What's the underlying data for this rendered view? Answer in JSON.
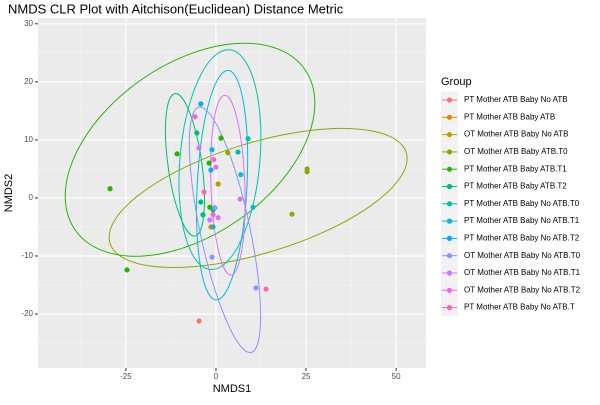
{
  "chart_data": {
    "type": "scatter",
    "title": "NMDS CLR Plot with Aitchison(Euclidean) Distance Metric",
    "x_label": "NMDS1",
    "y_label": "NMDS2",
    "legend_title": "Group",
    "xlim": [
      -49.4,
      58.3
    ],
    "ylim": [
      -29.3,
      31.0
    ],
    "xticks": [
      -25,
      0,
      25,
      50
    ],
    "yticks": [
      -20,
      -10,
      0,
      10,
      20,
      30
    ],
    "grid": true,
    "legend": "right",
    "series": [
      {
        "name": "PT Mother ATB Baby No ATB",
        "color": "#F8766D",
        "x": [
          -4.7
        ],
        "values": [
          -21.2
        ]
      },
      {
        "name": "PT Mother ATB Baby ATB",
        "color": "#E18A00",
        "x": [
          -1.4
        ],
        "values": [
          -5.0
        ]
      },
      {
        "name": "OT Mother ATB Baby No ATB",
        "color": "#BE9C00",
        "x": [
          0.6
        ],
        "values": [
          2.4
        ]
      },
      {
        "name": "OT Mother ATB Baby ATB.T0",
        "color": "#8CAB00",
        "x": [
          25.3,
          25.3,
          21.1,
          3.3
        ],
        "values": [
          5.0,
          4.5,
          -2.8,
          7.8
        ],
        "ellipse": {
          "cx": 11.7,
          "cy": 0,
          "rx": 43,
          "ry": 9.5,
          "angle": -17
        }
      },
      {
        "name": "PT Mother ATB Baby ATB.T1",
        "color": "#24B700",
        "x": [
          -29.4,
          -24.7,
          -10.8,
          1.4,
          -1.9,
          -1.7
        ],
        "values": [
          1.6,
          -12.4,
          7.6,
          10.3,
          6.0,
          -1.6
        ],
        "ellipse": {
          "cx": -7.2,
          "cy": 8.3,
          "rx": 38.9,
          "ry": 14.7,
          "angle": -35
        }
      },
      {
        "name": "PT Mother ATB Baby ATB.T2",
        "color": "#00BE70",
        "x": [
          -5.3,
          -4.2,
          -3.6,
          -0.8
        ],
        "values": [
          11.2,
          -0.7,
          -2.9,
          -2.1
        ],
        "ellipse": {
          "cx": -8.6,
          "cy": 5.7,
          "rx": 4.7,
          "ry": 12.4,
          "angle": -8
        }
      },
      {
        "name": "PT Mother ATB Baby No ATB.T0",
        "color": "#00C1AB",
        "x": [
          8.9,
          6.1,
          -0.8
        ],
        "values": [
          10.2,
          7.9,
          -5.0
        ],
        "ellipse": {
          "cx": 1.1,
          "cy": 6.6,
          "rx": 11.1,
          "ry": 19,
          "angle": 5
        }
      },
      {
        "name": "PT Mother ATB Baby No ATB.T1",
        "color": "#00BBDA",
        "x": [
          6.9,
          10.3,
          -1.1
        ],
        "values": [
          4.0,
          -1.6,
          8.3
        ],
        "ellipse": {
          "cx": 1.7,
          "cy": 2.2,
          "rx": 6.9,
          "ry": 19.8,
          "angle": 3
        }
      },
      {
        "name": "PT Mother ATB Baby No ATB.T2",
        "color": "#00ACFC",
        "x": [
          -4.2,
          -1.4
        ],
        "values": [
          16.2,
          4.8
        ]
      },
      {
        "name": "OT Mother ATB Baby No ATB.T0",
        "color": "#8B93FF",
        "x": [
          11.1,
          -1.1,
          -0.3
        ],
        "values": [
          -15.5,
          -10.2,
          -1.7
        ],
        "ellipse": {
          "cx": 2.5,
          "cy": -5.5,
          "rx": 6.9,
          "ry": 21.6,
          "angle": -12
        }
      },
      {
        "name": "OT Mother ATB Baby No ATB.T1",
        "color": "#D575FE",
        "x": [
          6.7,
          -4.7,
          0,
          -1.7,
          0.6
        ],
        "values": [
          -0.2,
          8.6,
          5.3,
          -3.8,
          -3.4
        ],
        "ellipse": {
          "cx": 3.3,
          "cy": 2.2,
          "rx": 4.7,
          "ry": 15.5,
          "angle": -2
        }
      },
      {
        "name": "OT Mother ATB Baby No ATB.T2",
        "color": "#F962DD",
        "x": [
          -5.8,
          -0.6,
          -0.8
        ],
        "values": [
          14.0,
          6.6,
          -2.9
        ]
      },
      {
        "name": "PT Mother ATB Baby No ATB.T",
        "color": "#FF65AC",
        "x": [
          -3.3,
          13.9
        ],
        "values": [
          1.0,
          -15.7
        ]
      }
    ]
  }
}
